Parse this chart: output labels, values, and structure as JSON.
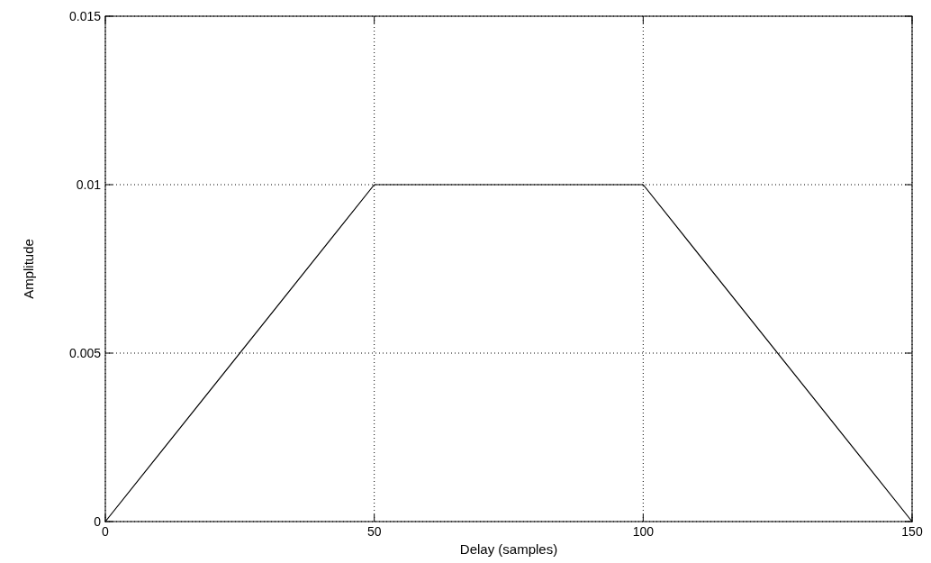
{
  "chart_data": {
    "type": "line",
    "xlabel": "Delay (samples)",
    "ylabel": "Amplitude",
    "x": [
      0,
      50,
      100,
      150
    ],
    "series": [
      {
        "color": "#000000",
        "values": [
          0,
          0.01,
          0.01,
          0
        ]
      }
    ],
    "xlim": [
      0,
      150
    ],
    "xticks": [
      0,
      50,
      100,
      150
    ],
    "ylim": [
      0,
      0.015
    ],
    "yticks": [
      0,
      0.005,
      0.01,
      0.015
    ],
    "grid": true,
    "line_style": "solid"
  }
}
